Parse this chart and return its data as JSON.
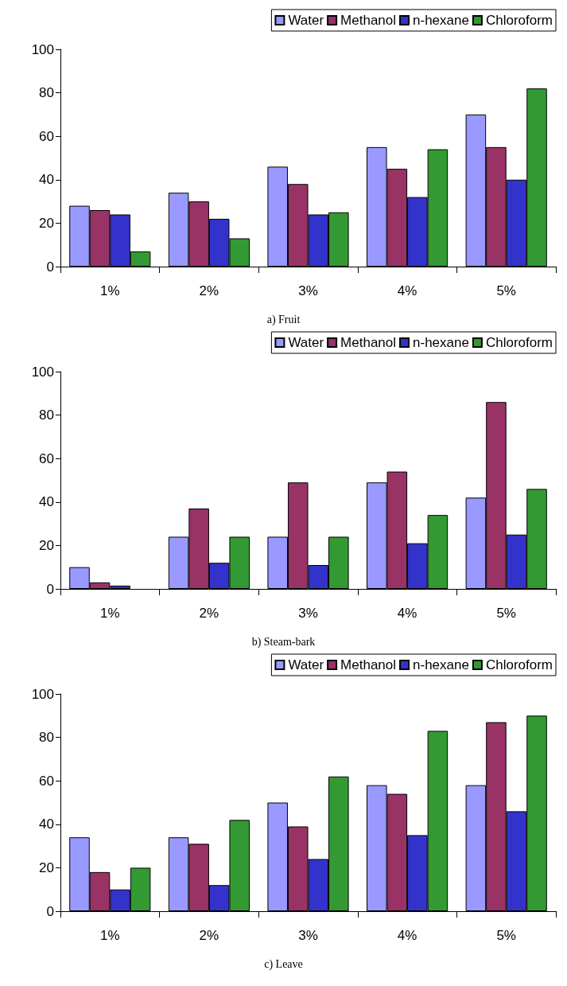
{
  "chart_data": [
    {
      "type": "bar",
      "title": "a) Fruit",
      "categories": [
        "1%",
        "2%",
        "3%",
        "4%",
        "5%"
      ],
      "ylim": [
        0,
        100
      ],
      "yticks": [
        0,
        20,
        40,
        60,
        80,
        100
      ],
      "grid": false,
      "legend": "top right",
      "series": [
        {
          "name": "Water",
          "color": "#9999ff",
          "values": [
            28,
            34,
            46,
            55,
            70
          ]
        },
        {
          "name": "Methanol",
          "color": "#993366",
          "values": [
            26,
            30,
            38,
            45,
            55
          ]
        },
        {
          "name": "n-hexane",
          "color": "#3333cc",
          "values": [
            24,
            22,
            24,
            32,
            40
          ]
        },
        {
          "name": "Chloroform",
          "color": "#339933",
          "values": [
            7,
            13,
            25,
            54,
            82
          ]
        }
      ]
    },
    {
      "type": "bar",
      "title": "b) Steam-bark",
      "categories": [
        "1%",
        "2%",
        "3%",
        "4%",
        "5%"
      ],
      "ylim": [
        0,
        100
      ],
      "yticks": [
        0,
        20,
        40,
        60,
        80,
        100
      ],
      "grid": false,
      "legend": "top right",
      "series": [
        {
          "name": "Water",
          "color": "#9999ff",
          "values": [
            10,
            24,
            24,
            49,
            42
          ]
        },
        {
          "name": "Methanol",
          "color": "#993366",
          "values": [
            3,
            37,
            49,
            54,
            86
          ]
        },
        {
          "name": "n-hexane",
          "color": "#3333cc",
          "values": [
            1.5,
            12,
            11,
            21,
            25
          ]
        },
        {
          "name": "Chloroform",
          "color": "#339933",
          "values": [
            null,
            24,
            24,
            34,
            46
          ]
        }
      ]
    },
    {
      "type": "bar",
      "title": "c) Leave",
      "categories": [
        "1%",
        "2%",
        "3%",
        "4%",
        "5%"
      ],
      "ylim": [
        0,
        100
      ],
      "yticks": [
        0,
        20,
        40,
        60,
        80,
        100
      ],
      "grid": false,
      "legend": "top right",
      "series": [
        {
          "name": "Water",
          "color": "#9999ff",
          "values": [
            34,
            34,
            50,
            58,
            58
          ]
        },
        {
          "name": "Methanol",
          "color": "#993366",
          "values": [
            18,
            31,
            39,
            54,
            87
          ]
        },
        {
          "name": "n-hexane",
          "color": "#3333cc",
          "values": [
            10,
            12,
            24,
            35,
            46
          ]
        },
        {
          "name": "Chloroform",
          "color": "#339933",
          "values": [
            20,
            42,
            62,
            83,
            90
          ]
        }
      ]
    }
  ]
}
